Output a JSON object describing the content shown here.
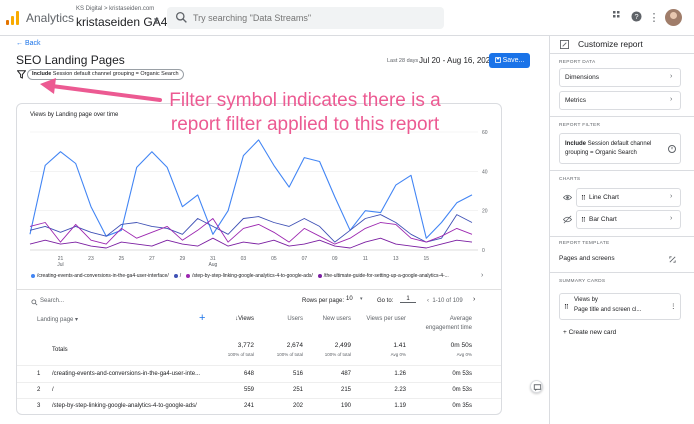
{
  "topbar": {
    "app_name": "Analytics",
    "account_line1": "KS Digital > kristaseiden.com",
    "account_line2": "kristaseiden GA4",
    "search_placeholder": "Try searching \"Data Streams\""
  },
  "report": {
    "back_label": "Back",
    "title": "SEO Landing Pages",
    "date_prefix": "Last 28 days",
    "date_range": "Jul 20 - Aug 16, 2022",
    "save_label": "Save...",
    "filter_chip_bold": "Include",
    "filter_chip_text": " Session default channel grouping = Organic Search"
  },
  "annotation": {
    "line1": "Filter symbol indicates there is a",
    "line2": "report filter applied to this report"
  },
  "chart_data": {
    "type": "line",
    "title": "Views by Landing page over time",
    "x": [
      "19",
      "20",
      "21",
      "22",
      "23",
      "24",
      "25",
      "26",
      "27",
      "28",
      "29",
      "30",
      "31",
      "01",
      "02",
      "03",
      "04",
      "05",
      "06",
      "07",
      "08",
      "09",
      "10",
      "11",
      "12",
      "13",
      "14",
      "15",
      "16",
      "17"
    ],
    "x_tick_labels": [
      "21\nJul",
      "23",
      "25",
      "27",
      "29",
      "31\nAug",
      "03",
      "05",
      "07",
      "09",
      "11",
      "13",
      "15"
    ],
    "y_ticks": [
      "0",
      "20",
      "40",
      "60"
    ],
    "ylim": [
      0,
      60
    ],
    "series": [
      {
        "name": "/creating-events-and-conversions-in-the-ga4-user-interface/",
        "color": "#4285f4",
        "values": [
          8,
          43,
          50,
          44,
          22,
          7,
          10,
          42,
          50,
          42,
          22,
          28,
          8,
          20,
          48,
          56,
          43,
          32,
          47,
          45,
          27,
          10,
          20,
          19,
          33,
          38,
          6,
          14,
          24,
          28
        ]
      },
      {
        "name": "/",
        "color": "#3f51b5",
        "values": [
          10,
          12,
          9,
          12,
          9,
          7,
          13,
          14,
          12,
          11,
          8,
          16,
          12,
          8,
          16,
          17,
          14,
          12,
          16,
          12,
          4,
          10,
          16,
          18,
          14,
          8,
          4,
          6,
          18,
          14
        ]
      },
      {
        "name": "/step-by-step-linking-google-analytics-4-to-google-ads/",
        "color": "#9c27b0",
        "values": [
          12,
          14,
          4,
          13,
          5,
          3,
          11,
          6,
          9,
          12,
          5,
          10,
          16,
          4,
          11,
          13,
          9,
          4,
          11,
          7,
          3,
          6,
          11,
          14,
          13,
          6,
          4,
          7,
          11,
          8
        ]
      },
      {
        "name": "/the-ultimate-guide-for-setting-up-a-google-analytics-4-...",
        "color": "#7b1fa2",
        "values": [
          3,
          5,
          3,
          4,
          2,
          1,
          4,
          3,
          2,
          5,
          3,
          2,
          6,
          2,
          4,
          3,
          5,
          2,
          3,
          5,
          2,
          1,
          4,
          6,
          3,
          2,
          1,
          3,
          5,
          4
        ]
      }
    ]
  },
  "table": {
    "search_placeholder": "Search...",
    "rows_per_page_label": "Rows per page:",
    "rows_per_page_value": "10",
    "goto_label": "Go to:",
    "goto_value": "1",
    "pager_text": "1-10 of 109",
    "headers": {
      "landing_page": "Landing page",
      "views": "↓Views",
      "users": "Users",
      "new_users": "New users",
      "views_per_user": "Views per user",
      "avg_engagement_1": "Average",
      "avg_engagement_2": "engagement time"
    },
    "totals": {
      "label": "Totals",
      "views": "3,772",
      "views_pct": "100% of total",
      "users": "2,674",
      "users_pct": "100% of total",
      "new_users": "2,499",
      "new_users_pct": "100% of total",
      "vpu": "1.41",
      "vpu_pct": "Avg 0%",
      "aet": "0m 50s",
      "aet_pct": "Avg 0%"
    },
    "rows": [
      {
        "n": "1",
        "page": "/creating-events-and-conversions-in-the-ga4-user-inte...",
        "views": "648",
        "users": "516",
        "new_users": "487",
        "vpu": "1.26",
        "aet": "0m 53s"
      },
      {
        "n": "2",
        "page": "/",
        "views": "559",
        "users": "251",
        "new_users": "215",
        "vpu": "2.23",
        "aet": "0m 53s"
      },
      {
        "n": "3",
        "page": "/step-by-step-linking-google-analytics-4-to-google-ads/",
        "views": "241",
        "users": "202",
        "new_users": "190",
        "vpu": "1.19",
        "aet": "0m 35s"
      }
    ]
  },
  "panel": {
    "title": "Customize report",
    "section_report_data": "REPORT DATA",
    "dimensions": "Dimensions",
    "metrics": "Metrics",
    "section_report_filter": "REPORT FILTER",
    "filter_bold": "Include",
    "filter_text": " Session default channel grouping = Organic Search",
    "section_charts": "CHARTS",
    "line_chart": "Line Chart",
    "bar_chart": "Bar Chart",
    "section_template": "REPORT TEMPLATE",
    "template_label": "Pages and screens",
    "section_summary": "SUMMARY CARDS",
    "summary_line1": "Views by",
    "summary_line2": "Page title and screen cl...",
    "create_card": "+ Create new card"
  }
}
